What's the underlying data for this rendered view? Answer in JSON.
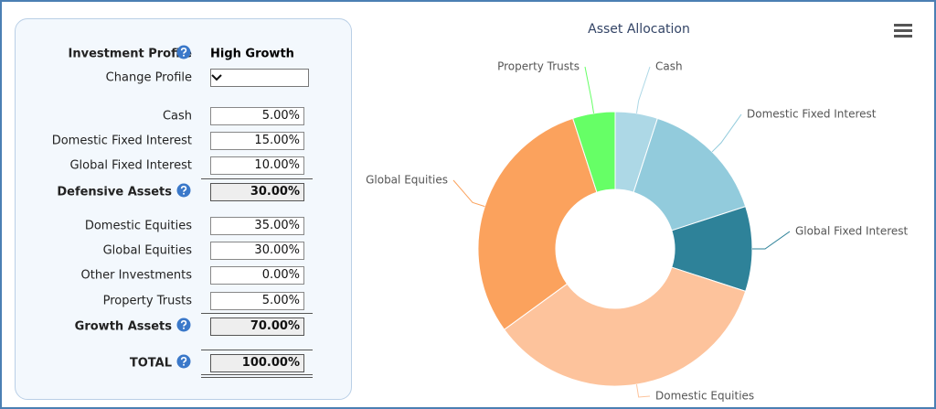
{
  "form": {
    "profile": {
      "label": "Investment Profile",
      "value": "High Growth"
    },
    "change_profile": {
      "label": "Change Profile"
    },
    "rows": [
      {
        "label": "Cash",
        "value": "5.00%"
      },
      {
        "label": "Domestic Fixed Interest",
        "value": "15.00%"
      },
      {
        "label": "Global Fixed Interest",
        "value": "10.00%"
      },
      {
        "label": "Defensive Assets",
        "value": "30.00%",
        "total": true
      },
      {
        "label": "Domestic Equities",
        "value": "35.00%"
      },
      {
        "label": "Global Equities",
        "value": "30.00%"
      },
      {
        "label": "Other Investments",
        "value": "0.00%"
      },
      {
        "label": "Property Trusts",
        "value": "5.00%"
      },
      {
        "label": "Growth Assets",
        "value": "70.00%",
        "total": true
      },
      {
        "label": "TOTAL",
        "value": "100.00%",
        "total": true
      }
    ]
  },
  "chart_data": {
    "type": "donut",
    "title": "Asset Allocation",
    "categories": [
      "Cash",
      "Domestic Fixed Interest",
      "Global Fixed Interest",
      "Domestic Equities",
      "Global Equities",
      "Property Trusts"
    ],
    "values": [
      5,
      15,
      10,
      35,
      30,
      5
    ],
    "colors": [
      "#add8e6",
      "#92cbdc",
      "#2e8299",
      "#fdc39c",
      "#fba25d",
      "#66ff66"
    ]
  }
}
